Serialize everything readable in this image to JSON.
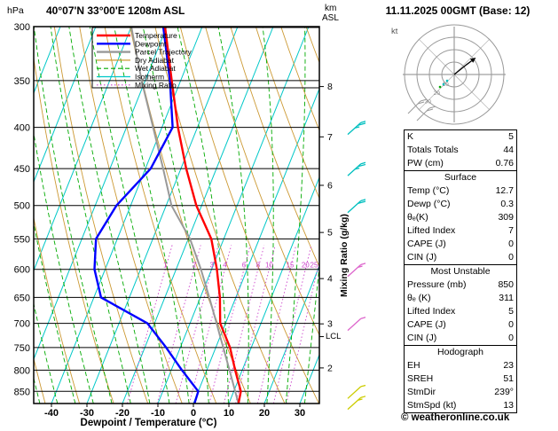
{
  "header": {
    "station_title": "40°07'N 33°00'E 1208m ASL",
    "date_title": "11.11.2025 00GMT (Base: 12)",
    "pressure_unit": "hPa",
    "altitude_unit_line1": "km",
    "altitude_unit_line2": "ASL"
  },
  "footer": {
    "copyright": "© weatheronline.co.uk"
  },
  "axes": {
    "x_label": "Dewpoint / Temperature (°C)",
    "right_label": "Mixing Ratio (g/kg)",
    "lcl_label": "LCL",
    "pressure_ticks_hpa": [
      300,
      350,
      400,
      450,
      500,
      550,
      600,
      650,
      700,
      750,
      800,
      850
    ],
    "temp_ticks_c": [
      -40,
      -30,
      -20,
      -10,
      0,
      10,
      20,
      30
    ],
    "km_ticks": [
      {
        "label": "8",
        "p_hpa": 356
      },
      {
        "label": "7",
        "p_hpa": 411
      },
      {
        "label": "6",
        "p_hpa": 472
      },
      {
        "label": "5",
        "p_hpa": 540
      },
      {
        "label": "4",
        "p_hpa": 616
      },
      {
        "label": "3",
        "p_hpa": 701
      },
      {
        "label": "2",
        "p_hpa": 795
      }
    ],
    "mixing_ratio_labels": [
      "1",
      "2",
      "3",
      "4",
      "6",
      "8",
      "10",
      "15",
      "20",
      "25"
    ]
  },
  "legend": {
    "entries": [
      {
        "label": "Temperature",
        "color": "#ff0000",
        "width": 2.4,
        "dash": ""
      },
      {
        "label": "Dewpoint",
        "color": "#0000ff",
        "width": 2.4,
        "dash": ""
      },
      {
        "label": "Parcel Trajectory",
        "color": "#999999",
        "width": 2.4,
        "dash": ""
      },
      {
        "label": "Dry Adiabat",
        "color": "#cc9933",
        "width": 1.2,
        "dash": ""
      },
      {
        "label": "Wet Adiabat",
        "color": "#00aa00",
        "width": 1.2,
        "dash": "5 3"
      },
      {
        "label": "Isotherm",
        "color": "#00c8c8",
        "width": 1.2,
        "dash": ""
      },
      {
        "label": "Mixing Ratio",
        "color": "#cc44cc",
        "width": 1.2,
        "dash": "1.5 2.5"
      }
    ]
  },
  "colors": {
    "isotherm": "#00c8c8",
    "dry_adiabat": "#cc9933",
    "wet_adiabat": "#00aa00",
    "mixing_ratio": "#cc44cc",
    "temperature": "#ff0000",
    "dewpoint": "#0000ff",
    "parcel": "#999999",
    "grid": "#000000",
    "hodograph_gray": "#909090"
  },
  "chart_data": {
    "type": "skewt-log-p",
    "title": "40°07'N 33°00'E 1208m ASL",
    "valid": "11.11.2025 00GMT (Base: 12)",
    "pressure_range_hpa": [
      300,
      880
    ],
    "temp_axis_range_c": [
      -45,
      35
    ],
    "lcl_hpa": 727,
    "mixing_ratio_lines_gkg": [
      1,
      2,
      3,
      4,
      6,
      8,
      10,
      15,
      20,
      25
    ],
    "profiles": {
      "temperature_c": [
        [
          880,
          12.7
        ],
        [
          850,
          12.0
        ],
        [
          800,
          8.0
        ],
        [
          750,
          4.0
        ],
        [
          700,
          -1.5
        ],
        [
          650,
          -4.5
        ],
        [
          600,
          -8.5
        ],
        [
          550,
          -13.5
        ],
        [
          500,
          -21.5
        ],
        [
          450,
          -28.5
        ],
        [
          400,
          -35.5
        ],
        [
          350,
          -42.5
        ],
        [
          300,
          -50.5
        ]
      ],
      "dewpoint_c": [
        [
          880,
          0.3
        ],
        [
          850,
          0.0
        ],
        [
          800,
          -7.0
        ],
        [
          750,
          -14.0
        ],
        [
          700,
          -22.0
        ],
        [
          650,
          -38.0
        ],
        [
          600,
          -43.0
        ],
        [
          550,
          -46.0
        ],
        [
          500,
          -44.0
        ],
        [
          450,
          -38.5
        ],
        [
          400,
          -37.0
        ],
        [
          350,
          -43.0
        ],
        [
          300,
          -51.0
        ]
      ],
      "parcel_c": [
        [
          880,
          12.7
        ],
        [
          850,
          10.4
        ],
        [
          800,
          6.4
        ],
        [
          750,
          2.1
        ],
        [
          727,
          0.0
        ],
        [
          700,
          -2.5
        ],
        [
          650,
          -7.5
        ],
        [
          600,
          -13.0
        ],
        [
          550,
          -19.5
        ],
        [
          500,
          -28.5
        ],
        [
          450,
          -35.0
        ],
        [
          400,
          -42.5
        ],
        [
          350,
          -51.0
        ],
        [
          300,
          -60.0
        ]
      ]
    },
    "wind_barbs": [
      {
        "p_hpa": 400,
        "speed_kt": 25,
        "color": "#00bfbf"
      },
      {
        "p_hpa": 450,
        "speed_kt": 25,
        "color": "#00bfbf"
      },
      {
        "p_hpa": 500,
        "speed_kt": 20,
        "color": "#00bfbf"
      },
      {
        "p_hpa": 600,
        "speed_kt": 15,
        "color": "#dd66cc"
      },
      {
        "p_hpa": 700,
        "speed_kt": 10,
        "color": "#dd66cc"
      },
      {
        "p_hpa": 850,
        "speed_kt": 10,
        "color": "#cccc00"
      },
      {
        "p_hpa": 877,
        "speed_kt": 13,
        "color": "#cccc00"
      }
    ]
  },
  "hodograph": {
    "unit": "kt",
    "rings_kt": [
      10,
      20,
      30,
      40
    ],
    "ring_labels": [
      "10",
      "20",
      "30"
    ],
    "trace_kt": [
      [
        0,
        0
      ],
      [
        5,
        -4
      ],
      [
        10,
        -8
      ],
      [
        14,
        -11
      ]
    ]
  },
  "table": {
    "sections": [
      {
        "header": "",
        "rows": [
          [
            "K",
            "5"
          ],
          [
            "Totals Totals",
            "44"
          ],
          [
            "PW (cm)",
            "0.76"
          ]
        ]
      },
      {
        "header": "Surface",
        "rows": [
          [
            "Temp (°C)",
            "12.7"
          ],
          [
            "Dewp (°C)",
            "0.3"
          ],
          [
            "θₑ(K)",
            "309"
          ],
          [
            "Lifted Index",
            "7"
          ],
          [
            "CAPE (J)",
            "0"
          ],
          [
            "CIN (J)",
            "0"
          ]
        ]
      },
      {
        "header": "Most Unstable",
        "rows": [
          [
            "Pressure (mb)",
            "850"
          ],
          [
            "θₑ (K)",
            "311"
          ],
          [
            "Lifted Index",
            "5"
          ],
          [
            "CAPE (J)",
            "0"
          ],
          [
            "CIN (J)",
            "0"
          ]
        ]
      },
      {
        "header": "Hodograph",
        "rows": [
          [
            "EH",
            "23"
          ],
          [
            "SREH",
            "51"
          ],
          [
            "StmDir",
            "239°"
          ],
          [
            "StmSpd (kt)",
            "13"
          ]
        ]
      }
    ]
  }
}
